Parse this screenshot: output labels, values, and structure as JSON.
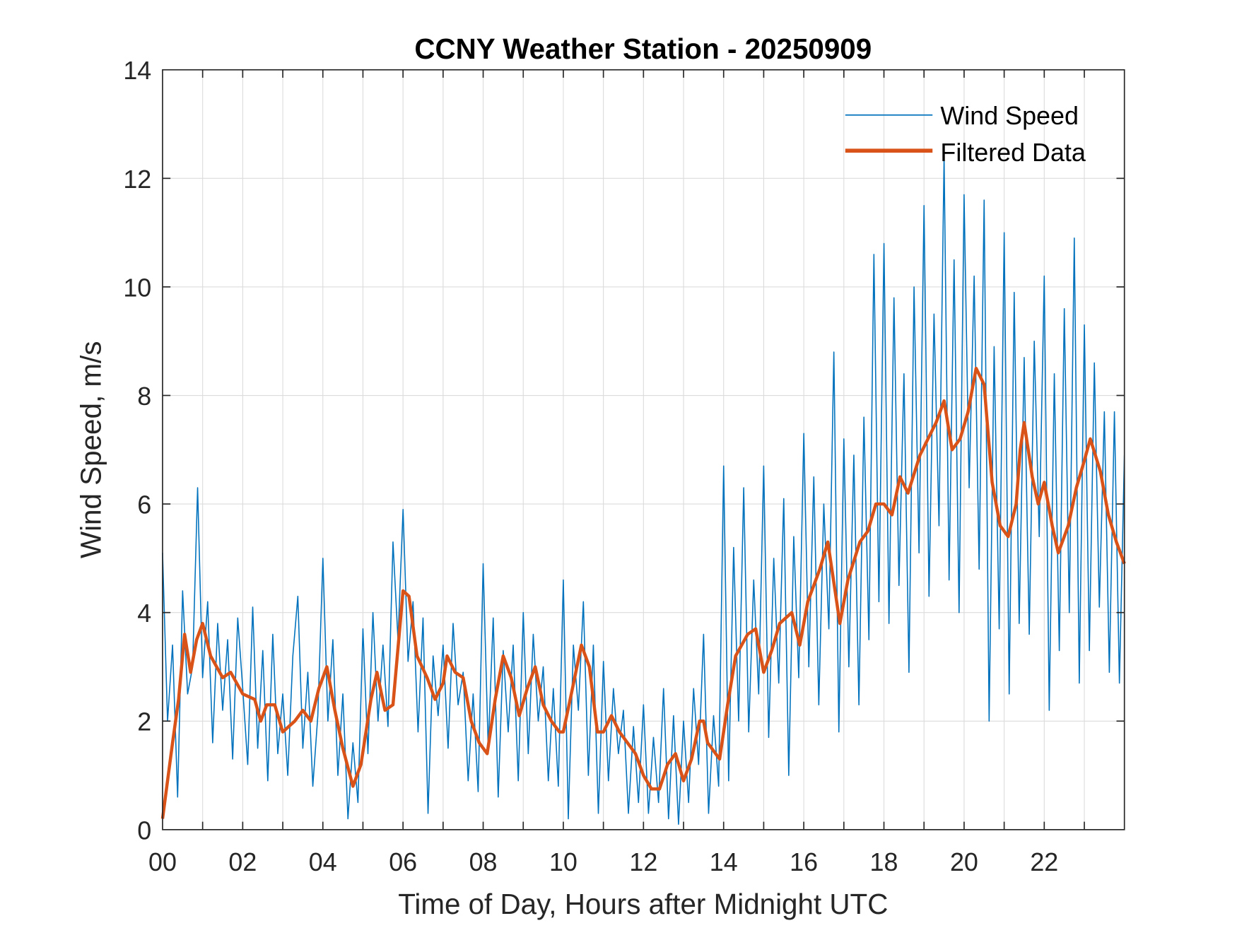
{
  "chart_data": {
    "type": "line",
    "title": "CCNY Weather Station - 20250909",
    "xlabel": "Time of Day, Hours after Midnight UTC",
    "ylabel": "Wind Speed, m/s",
    "xlim": [
      0,
      24
    ],
    "ylim": [
      0,
      14
    ],
    "grid": true,
    "legend_position": "top-right",
    "x_ticks": [
      0,
      2,
      4,
      6,
      8,
      10,
      12,
      14,
      16,
      18,
      20,
      22
    ],
    "x_tick_labels": [
      "00",
      "02",
      "04",
      "06",
      "08",
      "10",
      "12",
      "14",
      "16",
      "18",
      "20",
      "22"
    ],
    "y_ticks": [
      0,
      2,
      4,
      6,
      8,
      10,
      12,
      14
    ],
    "y_tick_labels": [
      "0",
      "2",
      "4",
      "6",
      "8",
      "10",
      "12",
      "14"
    ],
    "colors": {
      "raw": "#0072BD",
      "filtered": "#D95319"
    },
    "series": [
      {
        "name": "Wind Speed",
        "x_step_hours": 0.125,
        "values": [
          5.1,
          2.0,
          3.4,
          0.6,
          4.4,
          2.5,
          3.0,
          6.3,
          2.8,
          4.2,
          1.6,
          3.8,
          2.2,
          3.5,
          1.3,
          3.9,
          2.6,
          1.2,
          4.1,
          1.5,
          3.3,
          0.9,
          3.6,
          1.4,
          2.5,
          1.0,
          3.2,
          4.3,
          1.5,
          2.9,
          0.8,
          2.1,
          5.0,
          2.0,
          3.5,
          1.0,
          2.5,
          0.2,
          1.6,
          0.5,
          3.7,
          1.4,
          4.0,
          2.0,
          3.4,
          1.9,
          5.3,
          3.5,
          5.9,
          3.1,
          4.2,
          1.8,
          3.9,
          0.3,
          3.2,
          2.1,
          3.4,
          1.5,
          3.8,
          2.3,
          2.9,
          0.9,
          2.5,
          0.7,
          4.9,
          1.5,
          3.9,
          0.6,
          3.3,
          1.8,
          3.4,
          0.9,
          4.0,
          1.4,
          3.6,
          2.0,
          3.0,
          0.9,
          2.6,
          0.8,
          4.6,
          0.2,
          3.4,
          2.2,
          4.2,
          1.0,
          3.4,
          0.3,
          3.1,
          0.9,
          2.6,
          1.4,
          2.2,
          0.3,
          1.9,
          0.5,
          2.3,
          0.3,
          1.7,
          0.5,
          2.6,
          0.2,
          2.1,
          0.1,
          2.0,
          0.5,
          2.6,
          1.2,
          3.6,
          0.3,
          2.1,
          0.8,
          6.7,
          0.9,
          5.2,
          2.0,
          6.3,
          1.8,
          4.6,
          2.5,
          6.7,
          1.7,
          5.0,
          2.7,
          6.1,
          1.0,
          5.4,
          2.8,
          7.3,
          3.0,
          6.5,
          2.3,
          6.0,
          3.7,
          8.8,
          1.8,
          7.2,
          3.0,
          6.9,
          2.3,
          7.6,
          3.5,
          10.6,
          4.2,
          10.8,
          3.8,
          9.8,
          4.5,
          8.4,
          2.9,
          10.0,
          5.1,
          11.5,
          4.3,
          9.5,
          5.6,
          12.4,
          4.6,
          10.5,
          4.0,
          11.7,
          6.3,
          10.2,
          4.8,
          11.6,
          2.0,
          8.9,
          3.7,
          11.0,
          2.5,
          9.9,
          3.8,
          8.7,
          3.6,
          9.0,
          5.4,
          10.2,
          2.2,
          8.4,
          3.3,
          9.6,
          4.0,
          10.9,
          2.7,
          9.3,
          3.3,
          8.6,
          4.1,
          7.7,
          2.9,
          7.7,
          2.7,
          6.9
        ]
      },
      {
        "name": "Filtered Data",
        "points": [
          [
            0,
            0.2
          ],
          [
            0.25,
            1.6
          ],
          [
            0.4,
            2.4
          ],
          [
            0.55,
            3.6
          ],
          [
            0.7,
            2.9
          ],
          [
            0.85,
            3.5
          ],
          [
            1.0,
            3.8
          ],
          [
            1.2,
            3.2
          ],
          [
            1.5,
            2.8
          ],
          [
            1.7,
            2.9
          ],
          [
            2.0,
            2.5
          ],
          [
            2.3,
            2.4
          ],
          [
            2.45,
            2.0
          ],
          [
            2.6,
            2.3
          ],
          [
            2.8,
            2.3
          ],
          [
            3.0,
            1.8
          ],
          [
            3.3,
            2.0
          ],
          [
            3.5,
            2.2
          ],
          [
            3.7,
            2.0
          ],
          [
            3.9,
            2.6
          ],
          [
            4.1,
            3.0
          ],
          [
            4.3,
            2.2
          ],
          [
            4.5,
            1.5
          ],
          [
            4.75,
            0.8
          ],
          [
            4.95,
            1.2
          ],
          [
            5.2,
            2.4
          ],
          [
            5.35,
            2.9
          ],
          [
            5.55,
            2.2
          ],
          [
            5.75,
            2.3
          ],
          [
            6.0,
            4.4
          ],
          [
            6.15,
            4.3
          ],
          [
            6.35,
            3.2
          ],
          [
            6.6,
            2.8
          ],
          [
            6.8,
            2.4
          ],
          [
            7.0,
            2.7
          ],
          [
            7.1,
            3.2
          ],
          [
            7.3,
            2.9
          ],
          [
            7.5,
            2.8
          ],
          [
            7.7,
            2.0
          ],
          [
            7.9,
            1.6
          ],
          [
            8.1,
            1.4
          ],
          [
            8.3,
            2.4
          ],
          [
            8.5,
            3.2
          ],
          [
            8.7,
            2.8
          ],
          [
            8.9,
            2.1
          ],
          [
            9.1,
            2.6
          ],
          [
            9.3,
            3.0
          ],
          [
            9.5,
            2.3
          ],
          [
            9.7,
            2.0
          ],
          [
            9.9,
            1.8
          ],
          [
            10.0,
            1.8
          ],
          [
            10.2,
            2.5
          ],
          [
            10.45,
            3.4
          ],
          [
            10.65,
            3.0
          ],
          [
            10.85,
            1.8
          ],
          [
            11.0,
            1.8
          ],
          [
            11.2,
            2.1
          ],
          [
            11.4,
            1.8
          ],
          [
            11.6,
            1.6
          ],
          [
            11.8,
            1.4
          ],
          [
            12.0,
            1.0
          ],
          [
            12.2,
            0.75
          ],
          [
            12.4,
            0.75
          ],
          [
            12.6,
            1.2
          ],
          [
            12.8,
            1.4
          ],
          [
            13.0,
            0.9
          ],
          [
            13.2,
            1.3
          ],
          [
            13.4,
            2.0
          ],
          [
            13.5,
            2.0
          ],
          [
            13.6,
            1.6
          ],
          [
            13.9,
            1.3
          ],
          [
            14.1,
            2.3
          ],
          [
            14.3,
            3.2
          ],
          [
            14.6,
            3.6
          ],
          [
            14.8,
            3.7
          ],
          [
            15.0,
            2.9
          ],
          [
            15.2,
            3.3
          ],
          [
            15.4,
            3.8
          ],
          [
            15.7,
            4.0
          ],
          [
            15.9,
            3.4
          ],
          [
            16.1,
            4.2
          ],
          [
            16.4,
            4.8
          ],
          [
            16.6,
            5.3
          ],
          [
            16.9,
            3.8
          ],
          [
            17.1,
            4.6
          ],
          [
            17.4,
            5.3
          ],
          [
            17.6,
            5.5
          ],
          [
            17.8,
            6.0
          ],
          [
            18.0,
            6.0
          ],
          [
            18.2,
            5.8
          ],
          [
            18.4,
            6.5
          ],
          [
            18.6,
            6.2
          ],
          [
            18.9,
            6.9
          ],
          [
            19.1,
            7.2
          ],
          [
            19.3,
            7.5
          ],
          [
            19.5,
            7.9
          ],
          [
            19.7,
            7.0
          ],
          [
            19.9,
            7.2
          ],
          [
            20.1,
            7.7
          ],
          [
            20.3,
            8.5
          ],
          [
            20.5,
            8.2
          ],
          [
            20.7,
            6.4
          ],
          [
            20.9,
            5.6
          ],
          [
            21.1,
            5.4
          ],
          [
            21.3,
            6.0
          ],
          [
            21.4,
            7.0
          ],
          [
            21.5,
            7.5
          ],
          [
            21.7,
            6.5
          ],
          [
            21.85,
            6.0
          ],
          [
            22.0,
            6.4
          ],
          [
            22.2,
            5.6
          ],
          [
            22.35,
            5.1
          ],
          [
            22.6,
            5.6
          ],
          [
            22.8,
            6.3
          ],
          [
            23.0,
            6.8
          ],
          [
            23.15,
            7.2
          ],
          [
            23.4,
            6.6
          ],
          [
            23.6,
            5.8
          ],
          [
            23.8,
            5.3
          ],
          [
            24.0,
            4.9
          ]
        ]
      }
    ]
  }
}
